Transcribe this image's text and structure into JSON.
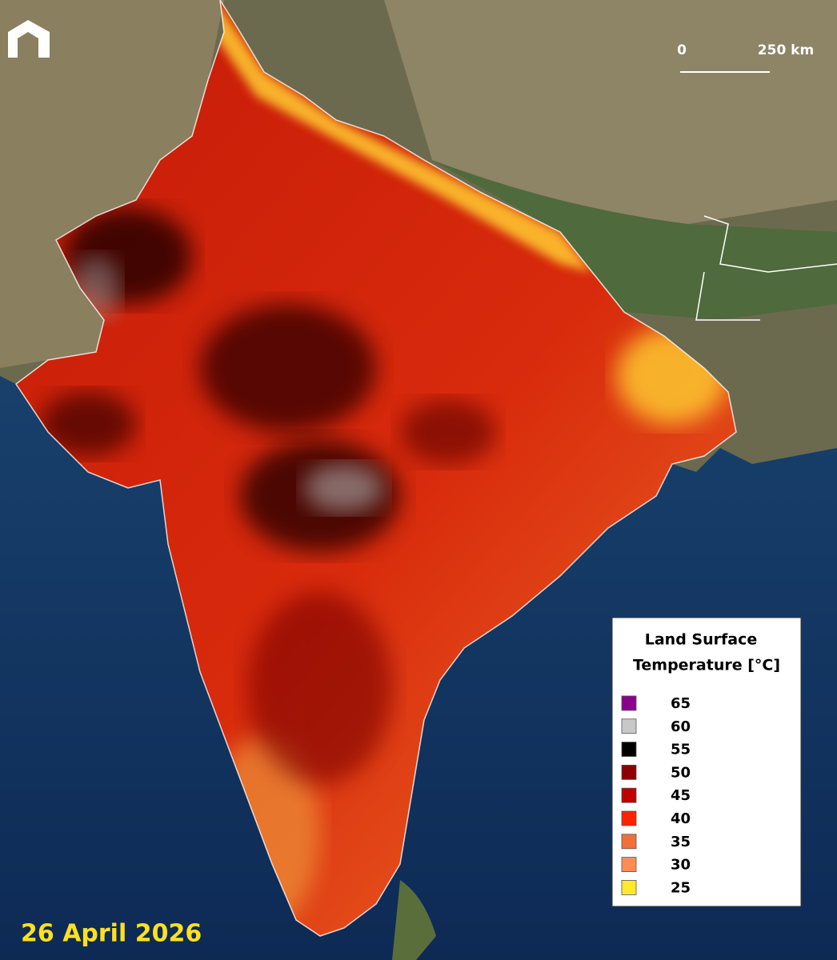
{
  "scale_bar": {
    "start": "0",
    "end": "250 km"
  },
  "legend": {
    "title_lines": [
      "Land Surface",
      "Temperature [°C]"
    ],
    "items": [
      {
        "value": 65,
        "color": "#8b008b"
      },
      {
        "value": 60,
        "color": "#c8c8c8"
      },
      {
        "value": 55,
        "color": "#000000"
      },
      {
        "value": 50,
        "color": "#8b0000"
      },
      {
        "value": 45,
        "color": "#c00000"
      },
      {
        "value": 40,
        "color": "#ff2200"
      },
      {
        "value": 35,
        "color": "#f0703a"
      },
      {
        "value": 30,
        "color": "#ff8c55"
      },
      {
        "value": 25,
        "color": "#ffe830"
      }
    ]
  },
  "date": "26 April 2026"
}
